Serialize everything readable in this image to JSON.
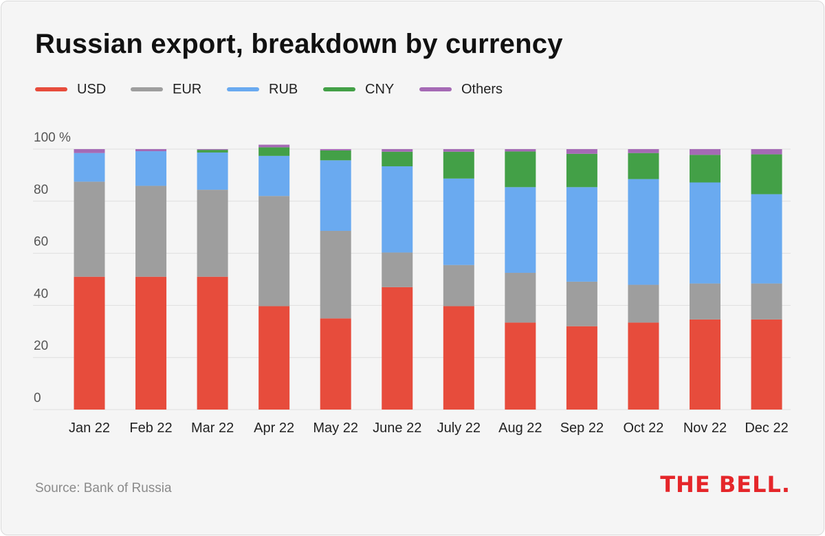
{
  "title": "Russian export, breakdown by currency",
  "source": "Source: Bank of Russia",
  "logo_text": "THE BELL.",
  "legend": [
    {
      "name": "USD",
      "color": "#e74c3c"
    },
    {
      "name": "EUR",
      "color": "#9e9e9e"
    },
    {
      "name": "RUB",
      "color": "#6aaaf0"
    },
    {
      "name": "CNY",
      "color": "#43a047"
    },
    {
      "name": "Others",
      "color": "#a56ab5"
    }
  ],
  "chart_data": {
    "type": "bar",
    "stacked": true,
    "title": "Russian export, breakdown by currency",
    "xlabel": "",
    "ylabel": "",
    "ylim": [
      0,
      100
    ],
    "yticks": [
      "0",
      "20",
      "40",
      "60",
      "80",
      "100 %"
    ],
    "grid": true,
    "legend_position": "top-left",
    "categories": [
      "Jan 22",
      "Feb 22",
      "Mar 22",
      "Apr 22",
      "May 22",
      "June 22",
      "July 22",
      "Aug 22",
      "Sep 22",
      "Oct 22",
      "Nov 22",
      "Dec 22"
    ],
    "series": [
      {
        "name": "USD",
        "color": "#e74c3c",
        "values": [
          51,
          51,
          51,
          39.7,
          35,
          47,
          39.7,
          33.4,
          32,
          33.4,
          34.6,
          34.6
        ]
      },
      {
        "name": "EUR",
        "color": "#9e9e9e",
        "values": [
          36.5,
          34.9,
          33.4,
          42.3,
          33.6,
          13.3,
          15.8,
          19.1,
          17.1,
          14.5,
          13.8,
          13.8
        ]
      },
      {
        "name": "RUB",
        "color": "#6aaaf0",
        "values": [
          11,
          13.3,
          14.3,
          15.4,
          27.1,
          33.1,
          33.2,
          32.9,
          36.3,
          40.6,
          38.8,
          34.3
        ]
      },
      {
        "name": "CNY",
        "color": "#43a047",
        "values": [
          0,
          0,
          1,
          3.3,
          3.8,
          5.6,
          10.3,
          13.7,
          12.8,
          10,
          10.6,
          15.3
        ]
      },
      {
        "name": "Others",
        "color": "#a56ab5",
        "values": [
          1.5,
          0.8,
          0.3,
          1,
          0.5,
          1,
          1,
          0.9,
          1.8,
          1.5,
          2.2,
          2
        ]
      }
    ]
  }
}
